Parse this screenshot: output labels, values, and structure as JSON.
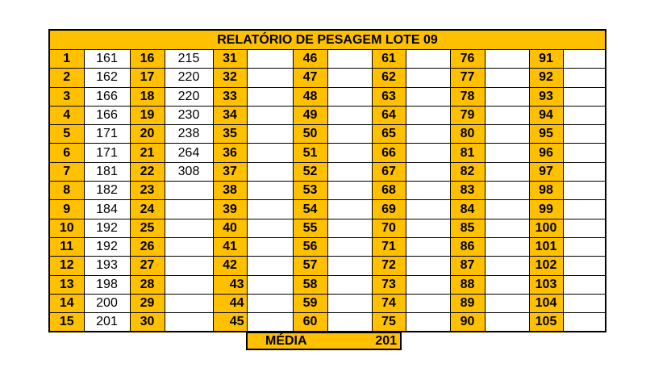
{
  "title": "RELATÓRIO DE PESAGEM LOTE  09",
  "columns": [
    {
      "numbers": [
        "1",
        "2",
        "3",
        "4",
        "5",
        "6",
        "7",
        "8",
        "9",
        "10",
        "11",
        "12",
        "13",
        "14",
        "15"
      ],
      "values": [
        "161",
        "162",
        "166",
        "166",
        "171",
        "171",
        "181",
        "182",
        "184",
        "192",
        "192",
        "193",
        "198",
        "200",
        "201"
      ]
    },
    {
      "numbers": [
        "16",
        "17",
        "18",
        "19",
        "20",
        "21",
        "22",
        "23",
        "24",
        "25",
        "26",
        "27",
        "28",
        "29",
        "30"
      ],
      "values": [
        "215",
        "220",
        "220",
        "230",
        "238",
        "264",
        "308",
        "",
        "",
        "",
        "",
        "",
        "",
        "",
        ""
      ]
    },
    {
      "numbers": [
        "31",
        "32",
        "33",
        "34",
        "35",
        "36",
        "37",
        "38",
        "39",
        "40",
        "41",
        "42",
        "43",
        "44",
        "45"
      ],
      "values": [
        "",
        "",
        "",
        "",
        "",
        "",
        "",
        "",
        "",
        "",
        "",
        "",
        "",
        "",
        ""
      ]
    },
    {
      "numbers": [
        "46",
        "47",
        "48",
        "49",
        "50",
        "51",
        "52",
        "53",
        "54",
        "55",
        "56",
        "57",
        "58",
        "59",
        "60"
      ],
      "values": [
        "",
        "",
        "",
        "",
        "",
        "",
        "",
        "",
        "",
        "",
        "",
        "",
        "",
        "",
        ""
      ]
    },
    {
      "numbers": [
        "61",
        "62",
        "63",
        "64",
        "65",
        "66",
        "67",
        "68",
        "69",
        "70",
        "71",
        "72",
        "73",
        "74",
        "75"
      ],
      "values": [
        "",
        "",
        "",
        "",
        "",
        "",
        "",
        "",
        "",
        "",
        "",
        "",
        "",
        "",
        ""
      ]
    },
    {
      "numbers": [
        "76",
        "77",
        "78",
        "79",
        "80",
        "81",
        "82",
        "83",
        "84",
        "85",
        "86",
        "87",
        "88",
        "89",
        "90"
      ],
      "values": [
        "",
        "",
        "",
        "",
        "",
        "",
        "",
        "",
        "",
        "",
        "",
        "",
        "",
        "",
        ""
      ]
    },
    {
      "numbers": [
        "91",
        "92",
        "93",
        "94",
        "95",
        "96",
        "97",
        "98",
        "99",
        "100",
        "101",
        "102",
        "103",
        "104",
        "105"
      ],
      "values": [
        "",
        "",
        "",
        "",
        "",
        "",
        "",
        "",
        "",
        "",
        "",
        "",
        "",
        "",
        ""
      ]
    }
  ],
  "media": {
    "label": "MÉDIA",
    "value": "201"
  },
  "colors": {
    "header": "#FFC000",
    "border": "#000000"
  }
}
